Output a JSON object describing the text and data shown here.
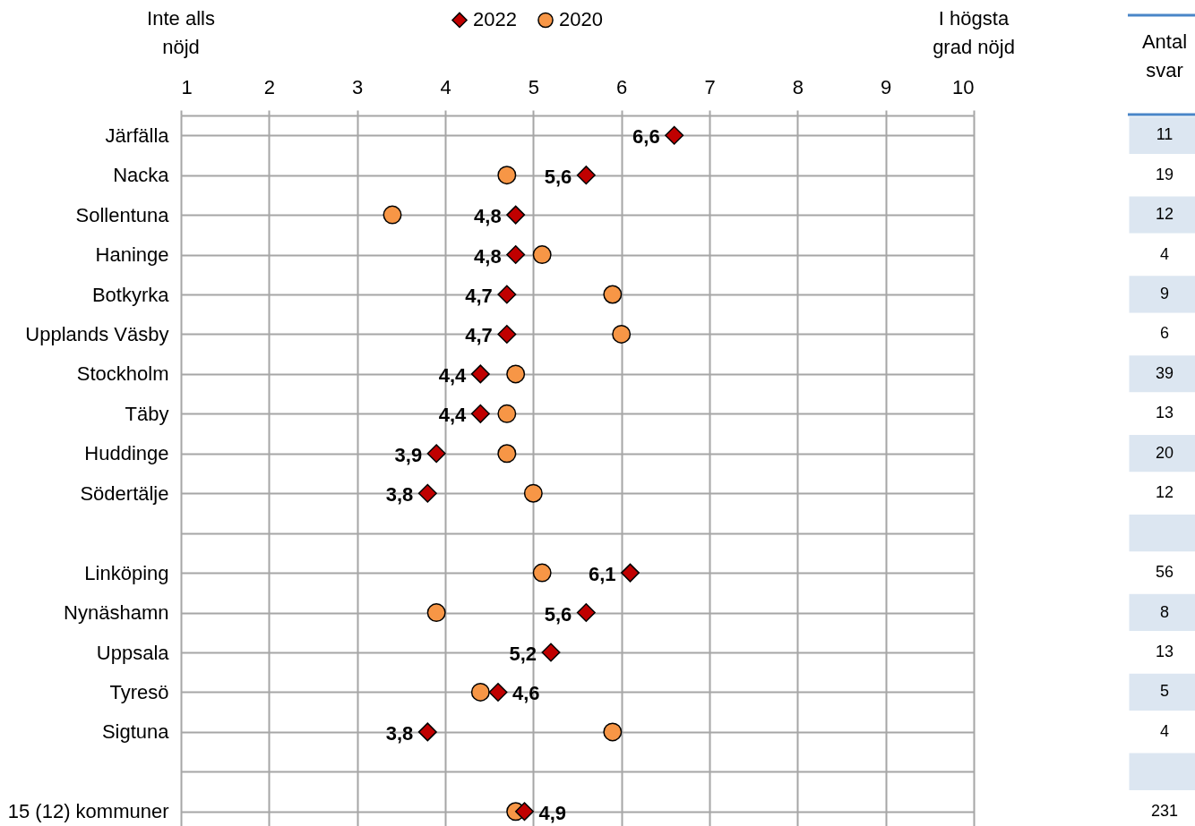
{
  "chart_data": [
    {
      "type": "scatter",
      "orientation": "horizontal",
      "categories": [
        "Järfälla",
        "Nacka",
        "Sollentuna",
        "Haninge",
        "Botkyrka",
        "Upplands Väsby",
        "Stockholm",
        "Täby",
        "Huddinge",
        "Södertälje",
        null,
        "Linköping",
        "Nynäshamn",
        "Uppsala",
        "Tyresö",
        "Sigtuna",
        null,
        "15 (12) kommuner"
      ],
      "xlim": [
        1,
        10
      ],
      "xticks": [
        1,
        2,
        3,
        4,
        5,
        6,
        7,
        8,
        9,
        10
      ],
      "grid": true,
      "legend": "top",
      "annotations": [
        "Inte alls nöjd",
        "I högsta grad nöjd"
      ],
      "series": [
        {
          "name": "2022",
          "color": "#c00000",
          "marker": "diamond",
          "values": [
            6.6,
            5.6,
            4.8,
            4.8,
            4.7,
            4.7,
            4.4,
            4.4,
            3.9,
            3.8,
            null,
            6.1,
            5.6,
            5.2,
            4.6,
            3.8,
            null,
            4.9
          ],
          "value_labels": [
            "6,6",
            "5,6",
            "4,8",
            "4,8",
            "4,7",
            "4,7",
            "4,4",
            "4,4",
            "3,9",
            "3,8",
            null,
            "6,1",
            "5,6",
            "5,2",
            "4,6",
            "3,8",
            null,
            "4,9"
          ]
        },
        {
          "name": "2020",
          "color": "#f79646",
          "marker": "circle",
          "values": [
            null,
            4.7,
            3.4,
            5.1,
            5.9,
            6.0,
            4.8,
            4.7,
            4.7,
            5.0,
            null,
            5.1,
            3.9,
            null,
            4.4,
            5.9,
            null,
            4.8
          ]
        }
      ]
    },
    {
      "type": "other",
      "title": "Antal svar",
      "categories": [
        null,
        null,
        null,
        null,
        null,
        null,
        null,
        null,
        null,
        null,
        null,
        null,
        null,
        null,
        null,
        null,
        null,
        null
      ],
      "values": [
        11,
        19,
        12,
        4,
        9,
        6,
        39,
        13,
        20,
        12,
        null,
        56,
        8,
        13,
        5,
        4,
        null,
        231
      ],
      "data_labels": true
    }
  ]
}
